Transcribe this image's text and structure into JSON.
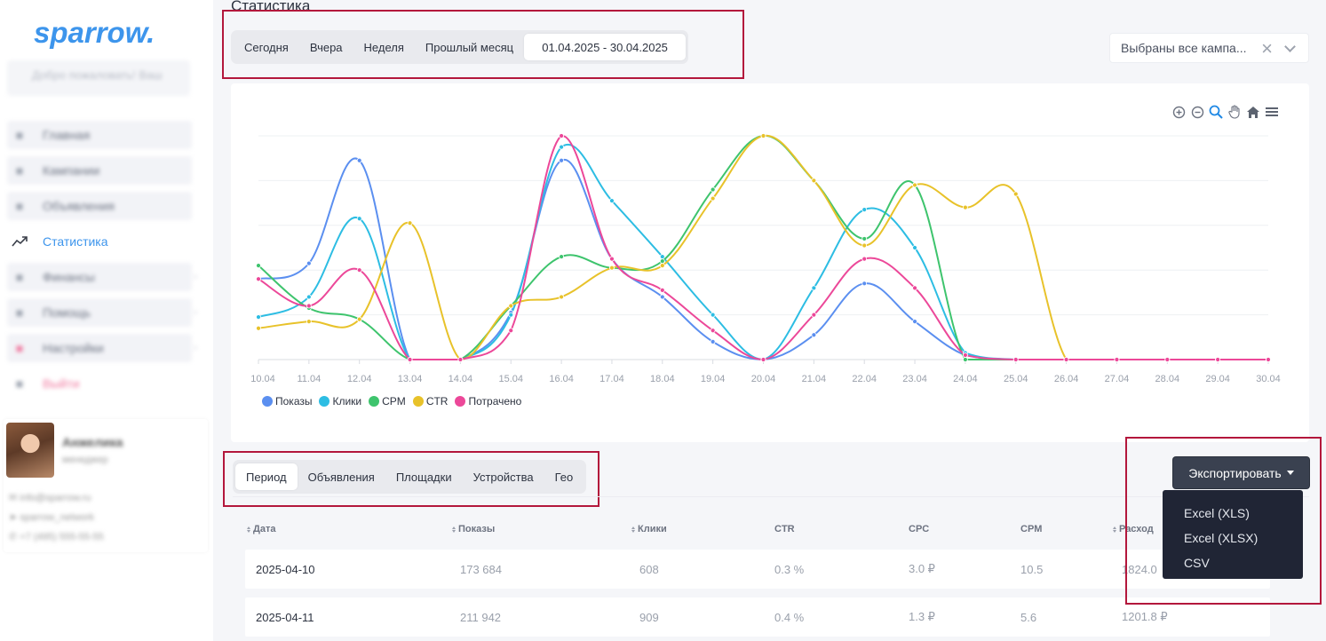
{
  "sidebar": {
    "logo": "sparrow.",
    "welcome": "Добро пожаловать! Ваш",
    "items": [
      {
        "label": "Главная",
        "icon": "home-icon",
        "blurred": true
      },
      {
        "label": "Кампании",
        "icon": "campaign-icon",
        "blurred": true
      },
      {
        "label": "Объявления",
        "icon": "ads-icon",
        "blurred": true
      },
      {
        "label": "Статистика",
        "icon": "trending-up-icon",
        "active": true
      },
      {
        "label": "Финансы",
        "icon": "wallet-icon",
        "blurred": true
      },
      {
        "label": "Помощь",
        "icon": "help-icon",
        "blurred": true
      },
      {
        "label": "Настройки",
        "icon": "settings-icon",
        "blurred": true
      },
      {
        "label": "Выйти",
        "icon": "logout-icon",
        "blurred": true
      }
    ],
    "profile": {
      "name": "Анжелика",
      "role": "менеджер",
      "email": "info@sparrow.ru",
      "telegram": "sparrow_network",
      "phone": "+7 (495) 555-55-55"
    }
  },
  "page": {
    "title": "Статистика"
  },
  "period_tabs": [
    "Сегодня",
    "Вчера",
    "Неделя",
    "Прошлый месяц"
  ],
  "date_range": "01.04.2025 - 30.04.2025",
  "campaign_filter": "Выбраны все кампа...",
  "chart_data": {
    "type": "line",
    "x": [
      "10.04",
      "11.04",
      "12.04",
      "13.04",
      "14.04",
      "15.04",
      "16.04",
      "17.04",
      "18.04",
      "19.04",
      "20.04",
      "21.04",
      "22.04",
      "23.04",
      "24.04",
      "25.04",
      "26.04",
      "27.04",
      "28.04",
      "29.04",
      "30.04"
    ],
    "ylim": [
      0,
      100
    ],
    "grid": true,
    "legend": "bottom-left",
    "series": [
      {
        "name": "Показы",
        "color": "#5b8ff0",
        "values": [
          36,
          43,
          89,
          0,
          0,
          21,
          89,
          45,
          28,
          8,
          0,
          11,
          34,
          17,
          2,
          0,
          0,
          0,
          0,
          0,
          0
        ]
      },
      {
        "name": "Клики",
        "color": "#2dbde3",
        "values": [
          19,
          28,
          63,
          0,
          0,
          20,
          95,
          71,
          46,
          20,
          0,
          32,
          67,
          50,
          3,
          0,
          0,
          0,
          0,
          0,
          0
        ]
      },
      {
        "name": "CPM",
        "color": "#3ec46d",
        "values": [
          42,
          23,
          18,
          0,
          0,
          24,
          46,
          41,
          44,
          76,
          100,
          80,
          54,
          78,
          0,
          0,
          0,
          0,
          0,
          0,
          0
        ]
      },
      {
        "name": "CTR",
        "color": "#e8c22a",
        "values": [
          14,
          17,
          18,
          61,
          0,
          24,
          28,
          41,
          42,
          72,
          100,
          80,
          51,
          78,
          68,
          74,
          0,
          0,
          0,
          0,
          0
        ]
      },
      {
        "name": "Потрачено",
        "color": "#ec4899",
        "values": [
          36,
          24,
          40,
          0,
          0,
          13,
          100,
          45,
          31,
          13,
          0,
          20,
          45,
          32,
          2,
          0,
          0,
          0,
          0,
          0,
          0
        ]
      }
    ]
  },
  "report_tabs": [
    "Период",
    "Объявления",
    "Площадки",
    "Устройства",
    "Гео"
  ],
  "export": {
    "label": "Экспортировать",
    "options": [
      "Excel (XLS)",
      "Excel (XLSX)",
      "CSV"
    ]
  },
  "table": {
    "columns": [
      "Дата",
      "Показы",
      "Клики",
      "CTR",
      "CPC",
      "CPM",
      "Расход"
    ],
    "rows": [
      [
        "2025-04-10",
        "173 684",
        "608",
        "0.3 %",
        "3.0 ₽",
        "10.5",
        "1824.0"
      ],
      [
        "2025-04-11",
        "211 942",
        "909",
        "0.4 %",
        "1.3 ₽",
        "5.6",
        "1201.8 ₽"
      ]
    ]
  },
  "colors": {
    "accent": "#3d95ec",
    "highlight_border": "#b3173c",
    "export_button": "#3a4150",
    "export_menu": "#202535"
  }
}
